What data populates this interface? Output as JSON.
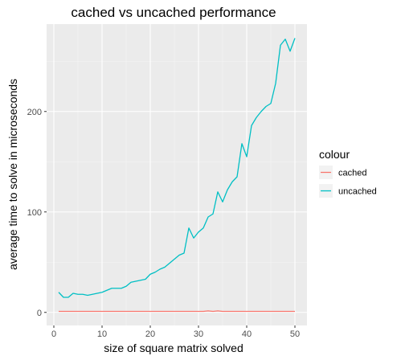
{
  "chart_data": {
    "type": "line",
    "title": "cached vs uncached performance",
    "xlabel": "size of square matrix solved",
    "ylabel": "average time to solve in microseconds",
    "xlim": [
      -1.5,
      52.5
    ],
    "ylim": [
      -13,
      287
    ],
    "x_ticks": [
      0,
      10,
      20,
      30,
      40,
      50
    ],
    "y_ticks": [
      0,
      100,
      200
    ],
    "grid": true,
    "legend_title": "colour",
    "legend_position": "right",
    "x": [
      1,
      2,
      3,
      4,
      5,
      6,
      7,
      8,
      9,
      10,
      11,
      12,
      13,
      14,
      15,
      16,
      17,
      18,
      19,
      20,
      21,
      22,
      23,
      24,
      25,
      26,
      27,
      28,
      29,
      30,
      31,
      32,
      33,
      34,
      35,
      36,
      37,
      38,
      39,
      40,
      41,
      42,
      43,
      44,
      45,
      46,
      47,
      48,
      49,
      50
    ],
    "series": [
      {
        "name": "cached",
        "color": "#F8766D",
        "values": [
          1,
          1,
          1,
          1,
          1,
          1,
          1,
          1,
          1,
          1,
          1,
          1,
          1,
          1,
          1,
          1,
          1,
          1,
          1,
          1,
          1,
          1,
          1,
          1,
          1,
          1,
          1,
          1,
          1,
          1,
          1,
          1.5,
          1,
          1.5,
          1,
          1,
          1,
          1,
          1,
          1,
          1,
          1,
          1,
          1,
          1,
          1,
          1,
          1,
          1,
          1
        ]
      },
      {
        "name": "uncached",
        "color": "#00BFC4",
        "values": [
          20,
          15,
          15,
          19,
          18,
          18,
          17,
          18,
          19,
          20,
          22,
          24,
          24,
          24,
          26,
          30,
          31,
          32,
          33,
          38,
          40,
          43,
          45,
          49,
          53,
          57,
          59,
          84,
          74,
          80,
          84,
          95,
          98,
          120,
          110,
          122,
          130,
          135,
          168,
          155,
          186,
          194,
          200,
          205,
          208,
          228,
          266,
          272,
          260,
          273
        ]
      }
    ]
  }
}
